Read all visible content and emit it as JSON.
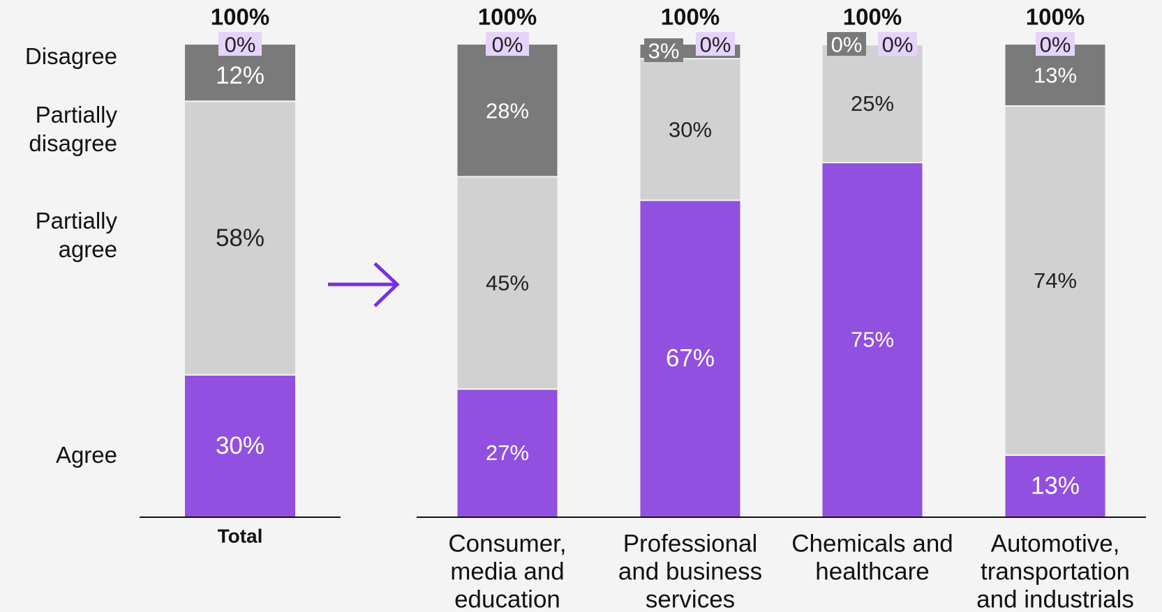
{
  "legend_labels": {
    "disagree": "Disagree",
    "partially_disagree": "Partially\ndisagree",
    "partially_agree": "Partially\nagree",
    "agree": "Agree"
  },
  "chart_data": {
    "type": "bar",
    "stacked": true,
    "categories": [
      "Total",
      "Consumer,\nmedia and\neducation",
      "Professional\nand business\nservices",
      "Chemicals and\nhealthcare",
      "Automotive,\ntransportation\nand industrials"
    ],
    "totals": [
      "100%",
      "100%",
      "100%",
      "100%",
      "100%"
    ],
    "series": [
      {
        "name": "Agree",
        "values": [
          30,
          27,
          67,
          75,
          13
        ],
        "color": "#9150e0"
      },
      {
        "name": "Partially agree",
        "values": [
          58,
          45,
          30,
          25,
          74
        ],
        "color": "#d1d1d1"
      },
      {
        "name": "Partially disagree",
        "values": [
          0,
          0,
          0,
          0,
          0
        ],
        "color": "#e6d3fb"
      },
      {
        "name": "Disagree",
        "values": [
          12,
          28,
          3,
          0,
          13
        ],
        "color": "#7a7a7a"
      }
    ],
    "value_labels": {
      "Agree": [
        "30%",
        "27%",
        "67%",
        "75%",
        "13%"
      ],
      "Partially agree": [
        "58%",
        "45%",
        "30%",
        "25%",
        "74%"
      ],
      "Partially disagree": [
        "0%",
        "0%",
        "0%",
        "0%",
        "0%"
      ],
      "Disagree": [
        "12%",
        "28%",
        "3%",
        "0%",
        "13%"
      ]
    },
    "ylim": [
      0,
      100
    ],
    "grid": false,
    "arrow_color": "#7a2fe0"
  }
}
